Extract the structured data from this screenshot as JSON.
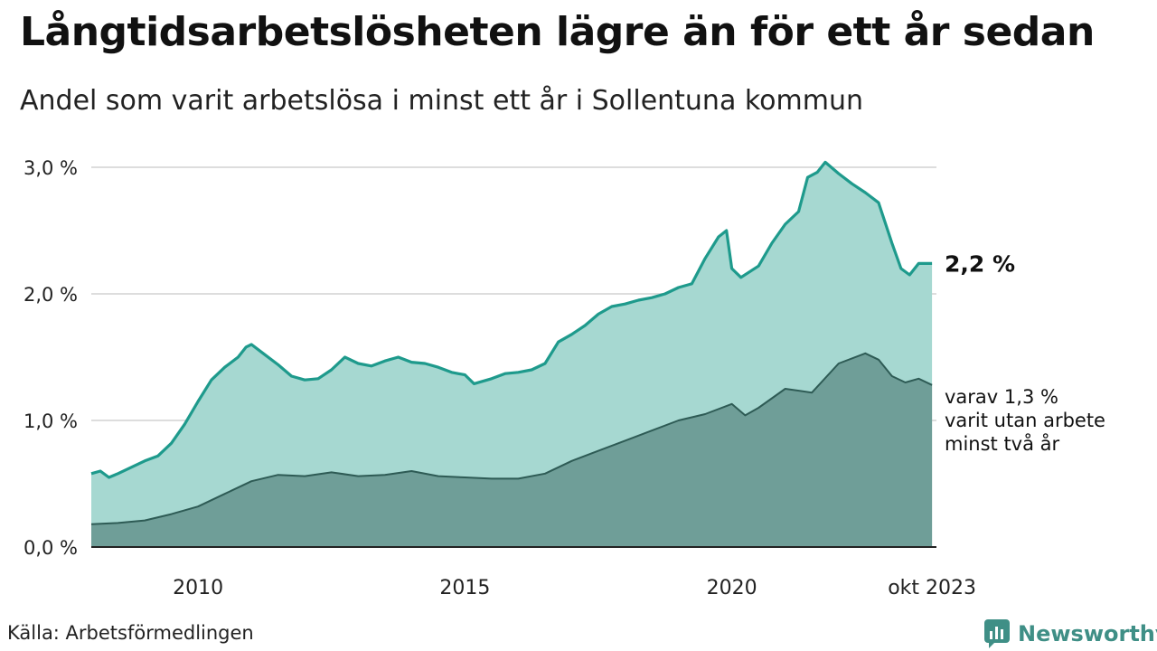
{
  "title": "Långtidsarbetslösheten lägre än för ett år sedan",
  "subtitle": "Andel som varit arbetslösa i minst ett år i Sollentuna kommun",
  "source": "Källa: Arbetsförmedlingen",
  "brand": "Newsworthy",
  "colors": {
    "total_fill": "#a6d8d1",
    "total_line": "#1e9a8c",
    "long_fill": "#6f9e98",
    "long_line": "#2e5b55",
    "grid": "#dddddd",
    "brand": "#3f8f86"
  },
  "chart_data": {
    "type": "area",
    "xlabel": "",
    "ylabel": "",
    "x_range": [
      2008,
      2023.833
    ],
    "ylim": [
      0,
      3.0
    ],
    "y_ticks": [
      {
        "value": 0,
        "label": "0,0 %"
      },
      {
        "value": 1,
        "label": "1,0 %"
      },
      {
        "value": 2,
        "label": "2,0 %"
      },
      {
        "value": 3,
        "label": "3,0 %"
      }
    ],
    "x_ticks": [
      {
        "value": 2010,
        "label": "2010"
      },
      {
        "value": 2015,
        "label": "2015"
      },
      {
        "value": 2020,
        "label": "2020"
      },
      {
        "value": 2023.75,
        "label": "okt 2023"
      }
    ],
    "grid": true,
    "series": [
      {
        "key": "total",
        "end_label": "2,2 %",
        "points": [
          [
            2008.0,
            0.58
          ],
          [
            2008.17,
            0.6
          ],
          [
            2008.33,
            0.55
          ],
          [
            2008.5,
            0.58
          ],
          [
            2008.75,
            0.63
          ],
          [
            2009.0,
            0.68
          ],
          [
            2009.25,
            0.72
          ],
          [
            2009.5,
            0.82
          ],
          [
            2009.75,
            0.97
          ],
          [
            2010.0,
            1.15
          ],
          [
            2010.25,
            1.32
          ],
          [
            2010.5,
            1.42
          ],
          [
            2010.75,
            1.5
          ],
          [
            2010.9,
            1.58
          ],
          [
            2011.0,
            1.6
          ],
          [
            2011.25,
            1.52
          ],
          [
            2011.5,
            1.44
          ],
          [
            2011.75,
            1.35
          ],
          [
            2012.0,
            1.32
          ],
          [
            2012.25,
            1.33
          ],
          [
            2012.5,
            1.4
          ],
          [
            2012.75,
            1.5
          ],
          [
            2013.0,
            1.45
          ],
          [
            2013.25,
            1.43
          ],
          [
            2013.5,
            1.47
          ],
          [
            2013.75,
            1.5
          ],
          [
            2014.0,
            1.46
          ],
          [
            2014.25,
            1.45
          ],
          [
            2014.5,
            1.42
          ],
          [
            2014.75,
            1.38
          ],
          [
            2015.0,
            1.36
          ],
          [
            2015.17,
            1.29
          ],
          [
            2015.5,
            1.33
          ],
          [
            2015.75,
            1.37
          ],
          [
            2016.0,
            1.38
          ],
          [
            2016.25,
            1.4
          ],
          [
            2016.5,
            1.45
          ],
          [
            2016.75,
            1.62
          ],
          [
            2017.0,
            1.68
          ],
          [
            2017.25,
            1.75
          ],
          [
            2017.5,
            1.84
          ],
          [
            2017.75,
            1.9
          ],
          [
            2018.0,
            1.92
          ],
          [
            2018.25,
            1.95
          ],
          [
            2018.5,
            1.97
          ],
          [
            2018.75,
            2.0
          ],
          [
            2019.0,
            2.05
          ],
          [
            2019.25,
            2.08
          ],
          [
            2019.5,
            2.28
          ],
          [
            2019.75,
            2.45
          ],
          [
            2019.9,
            2.5
          ],
          [
            2020.0,
            2.2
          ],
          [
            2020.17,
            2.13
          ],
          [
            2020.5,
            2.22
          ],
          [
            2020.75,
            2.4
          ],
          [
            2021.0,
            2.55
          ],
          [
            2021.25,
            2.65
          ],
          [
            2021.42,
            2.92
          ],
          [
            2021.6,
            2.96
          ],
          [
            2021.75,
            3.04
          ],
          [
            2022.0,
            2.95
          ],
          [
            2022.25,
            2.87
          ],
          [
            2022.5,
            2.8
          ],
          [
            2022.75,
            2.72
          ],
          [
            2023.0,
            2.4
          ],
          [
            2023.17,
            2.2
          ],
          [
            2023.33,
            2.15
          ],
          [
            2023.5,
            2.24
          ],
          [
            2023.75,
            2.24
          ]
        ]
      },
      {
        "key": "long",
        "end_label_lines": [
          "varav 1,3 %",
          "varit utan arbete",
          "minst två år"
        ],
        "points": [
          [
            2008.0,
            0.18
          ],
          [
            2008.5,
            0.19
          ],
          [
            2009.0,
            0.21
          ],
          [
            2009.5,
            0.26
          ],
          [
            2010.0,
            0.32
          ],
          [
            2010.5,
            0.42
          ],
          [
            2011.0,
            0.52
          ],
          [
            2011.5,
            0.57
          ],
          [
            2012.0,
            0.56
          ],
          [
            2012.5,
            0.59
          ],
          [
            2013.0,
            0.56
          ],
          [
            2013.5,
            0.57
          ],
          [
            2014.0,
            0.6
          ],
          [
            2014.5,
            0.56
          ],
          [
            2015.0,
            0.55
          ],
          [
            2015.5,
            0.54
          ],
          [
            2016.0,
            0.54
          ],
          [
            2016.5,
            0.58
          ],
          [
            2017.0,
            0.68
          ],
          [
            2017.5,
            0.76
          ],
          [
            2018.0,
            0.84
          ],
          [
            2018.5,
            0.92
          ],
          [
            2019.0,
            1.0
          ],
          [
            2019.5,
            1.05
          ],
          [
            2020.0,
            1.13
          ],
          [
            2020.25,
            1.04
          ],
          [
            2020.5,
            1.1
          ],
          [
            2021.0,
            1.25
          ],
          [
            2021.5,
            1.22
          ],
          [
            2022.0,
            1.45
          ],
          [
            2022.5,
            1.53
          ],
          [
            2022.75,
            1.48
          ],
          [
            2023.0,
            1.35
          ],
          [
            2023.25,
            1.3
          ],
          [
            2023.5,
            1.33
          ],
          [
            2023.75,
            1.28
          ]
        ]
      }
    ]
  }
}
